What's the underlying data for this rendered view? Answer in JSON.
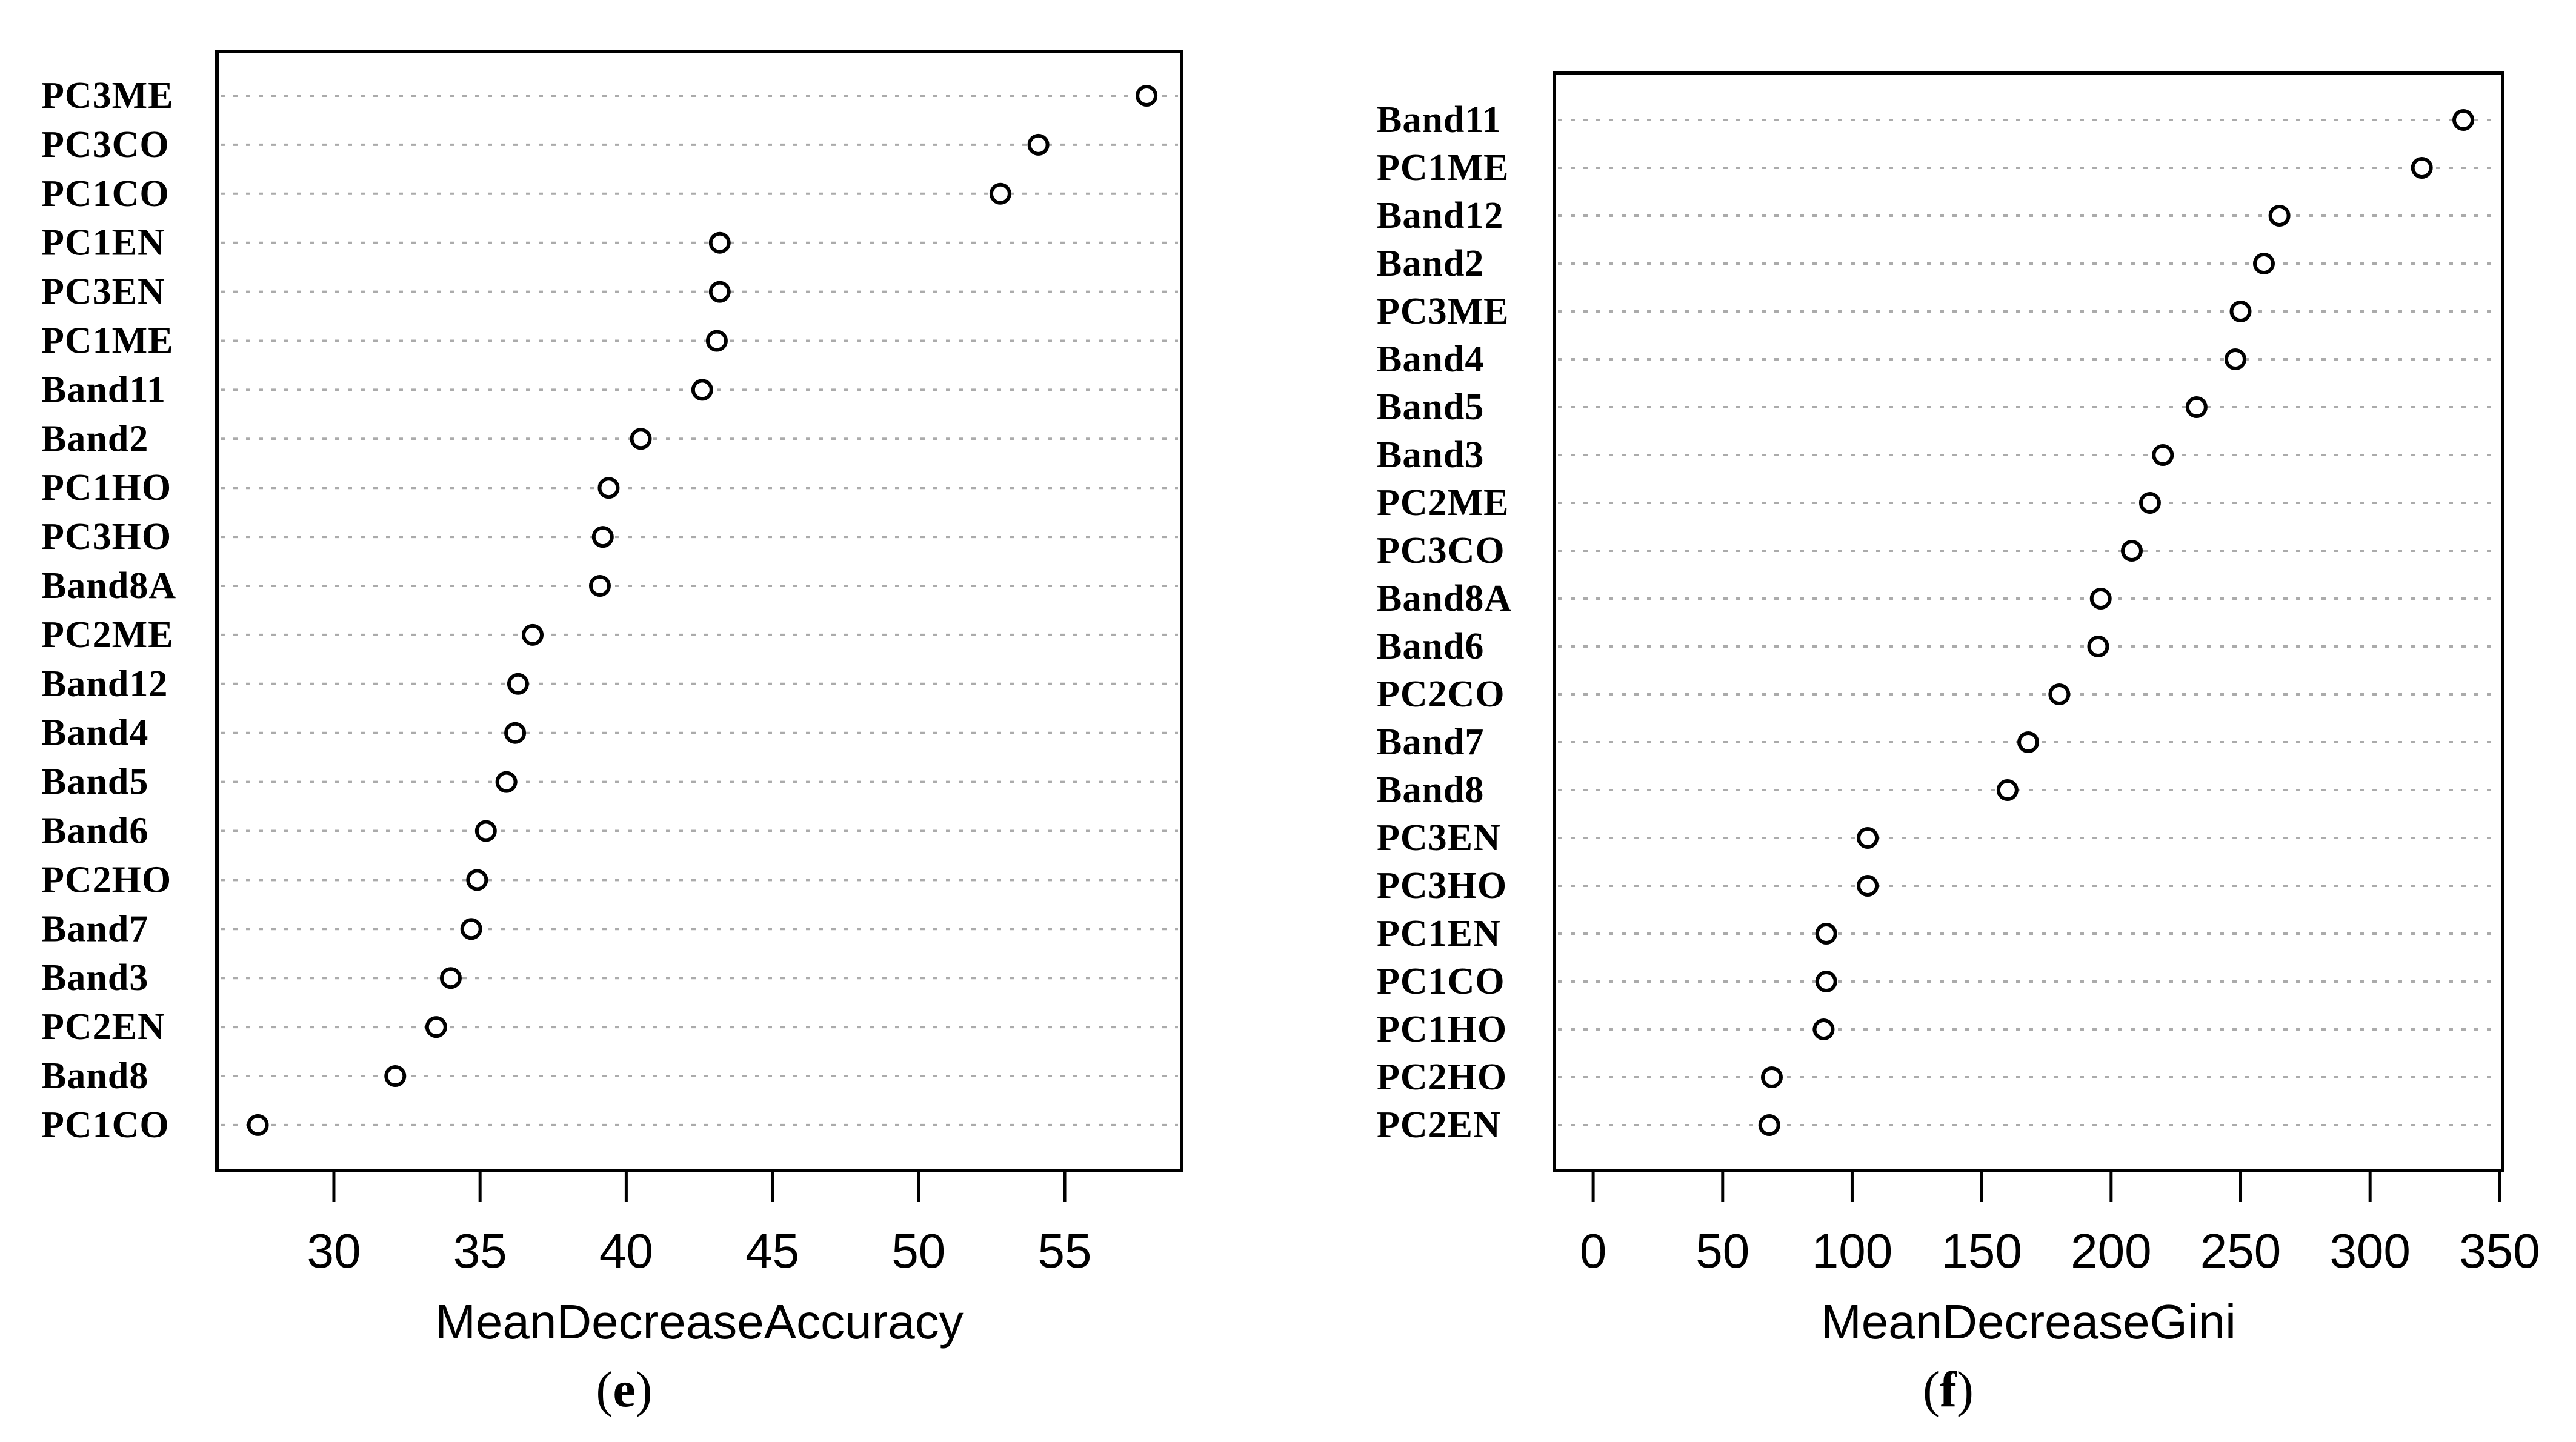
{
  "figure": {
    "background_color": "#ffffff",
    "ink_color": "#000000",
    "gridline_color": "#ababab"
  },
  "chart_data": [
    {
      "type": "scatter",
      "variant": "variable-importance-dot-plot",
      "title": "",
      "xlabel": "MeanDecreaseAccuracy",
      "ylabel": "",
      "caption": {
        "prefix": "(",
        "letter": "e",
        "suffix": ")"
      },
      "legend_position": "none",
      "grid": "dotted-horizontal",
      "marker": "open-circle",
      "xlim": [
        26.0,
        59.0
      ],
      "xticks": [
        30,
        35,
        40,
        45,
        50,
        55
      ],
      "categories": [
        "PC3ME",
        "PC3CO",
        "PC1CO",
        "PC1EN",
        "PC3EN",
        "PC1ME",
        "Band11",
        "Band2",
        "PC1HO",
        "PC3HO",
        "Band8A",
        "PC2ME",
        "Band12",
        "Band4",
        "Band5",
        "Band6",
        "PC2HO",
        "Band7",
        "Band3",
        "PC2EN",
        "Band8",
        "PC1CO"
      ],
      "values": [
        57.8,
        54.1,
        52.8,
        43.2,
        43.2,
        43.1,
        42.6,
        40.5,
        39.4,
        39.2,
        39.1,
        36.8,
        36.3,
        36.2,
        35.9,
        35.2,
        34.9,
        34.7,
        34.0,
        33.5,
        32.1,
        27.4
      ]
    },
    {
      "type": "scatter",
      "variant": "variable-importance-dot-plot",
      "title": "",
      "xlabel": "MeanDecreaseGini",
      "ylabel": "",
      "caption": {
        "prefix": "(",
        "letter": "f",
        "suffix": ")"
      },
      "legend_position": "none",
      "grid": "dotted-horizontal",
      "marker": "open-circle",
      "xlim": [
        -15.0,
        351.2
      ],
      "xticks": [
        0,
        50,
        100,
        150,
        200,
        250,
        300,
        350
      ],
      "categories": [
        "Band11",
        "PC1ME",
        "Band12",
        "Band2",
        "PC3ME",
        "Band4",
        "Band5",
        "Band3",
        "PC2ME",
        "PC3CO",
        "Band8A",
        "Band6",
        "PC2CO",
        "Band7",
        "Band8",
        "PC3EN",
        "PC3HO",
        "PC1EN",
        "PC1CO",
        "PC1HO",
        "PC2HO",
        "PC2EN"
      ],
      "values": [
        336,
        320,
        265,
        259,
        250,
        248,
        233,
        220,
        215,
        208,
        196,
        195,
        180,
        168,
        160,
        106,
        106,
        90,
        90,
        89,
        69,
        68
      ]
    }
  ]
}
